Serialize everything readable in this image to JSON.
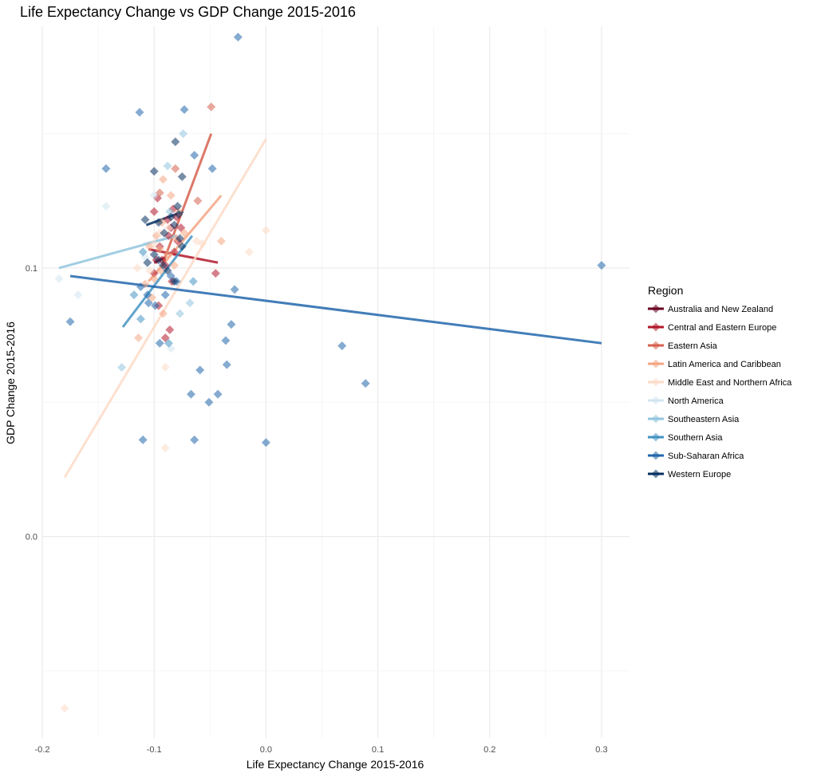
{
  "chart_data": {
    "type": "scatter",
    "title": "Life Expectancy Change vs GDP Change 2015-2016",
    "xlabel": "Life Expectancy Change 2015-2016",
    "ylabel": "GDP Change 2015-2016",
    "xlim": [
      -0.2,
      0.325
    ],
    "ylim": [
      -0.075,
      0.19
    ],
    "x_ticks": [
      -0.2,
      -0.1,
      0.0,
      0.1,
      0.2,
      0.3
    ],
    "x_tick_labels": [
      "-0.2",
      "-0.1",
      "0.0",
      "0.1",
      "0.2",
      "0.3"
    ],
    "y_ticks": [
      0.0,
      0.1
    ],
    "y_tick_labels": [
      "0.0",
      "0.1"
    ],
    "grid": true,
    "legend_title": "Region",
    "legend_position": "right",
    "series": [
      {
        "name": "Australia and New Zealand",
        "color": "#67001f",
        "points": [],
        "fit": [
          [
            -0.1,
            0.102
          ],
          [
            -0.09,
            0.104
          ]
        ]
      },
      {
        "name": "Central and Eastern Europe",
        "color": "#b2182b",
        "points": [
          [
            -0.1,
            0.121
          ],
          [
            -0.097,
            0.126
          ],
          [
            -0.095,
            0.108
          ],
          [
            -0.093,
            0.103
          ],
          [
            -0.09,
            0.101
          ],
          [
            -0.088,
            0.118
          ],
          [
            -0.087,
            0.112
          ],
          [
            -0.085,
            0.115
          ],
          [
            -0.083,
            0.122
          ],
          [
            -0.082,
            0.106
          ],
          [
            -0.08,
            0.119
          ],
          [
            -0.079,
            0.11
          ],
          [
            -0.098,
            0.103
          ],
          [
            -0.096,
            0.086
          ],
          [
            -0.09,
            0.074
          ],
          [
            -0.086,
            0.077
          ],
          [
            -0.076,
            0.115
          ],
          [
            -0.045,
            0.098
          ],
          [
            -0.084,
            0.095
          ],
          [
            -0.1,
            0.098
          ]
        ],
        "fit": [
          [
            -0.105,
            0.107
          ],
          [
            -0.043,
            0.102
          ]
        ]
      },
      {
        "name": "Eastern Asia",
        "color": "#d6604d",
        "points": [
          [
            -0.049,
            0.16
          ],
          [
            -0.061,
            0.125
          ],
          [
            -0.081,
            0.137
          ],
          [
            -0.095,
            0.128
          ]
        ],
        "fit": [
          [
            -0.092,
            0.102
          ],
          [
            -0.049,
            0.15
          ]
        ]
      },
      {
        "name": "Latin America and Caribbean",
        "color": "#f4a582",
        "points": [
          [
            -0.092,
            0.133
          ],
          [
            -0.085,
            0.127
          ],
          [
            -0.078,
            0.121
          ],
          [
            -0.073,
            0.113
          ],
          [
            -0.098,
            0.112
          ],
          [
            -0.104,
            0.108
          ],
          [
            -0.093,
            0.117
          ],
          [
            -0.088,
            0.105
          ],
          [
            -0.082,
            0.101
          ],
          [
            -0.094,
            0.099
          ],
          [
            -0.1,
            0.096
          ],
          [
            -0.108,
            0.094
          ],
          [
            -0.114,
            0.074
          ],
          [
            -0.092,
            0.083
          ],
          [
            -0.04,
            0.11
          ],
          [
            -0.102,
            0.089
          ],
          [
            -0.095,
            0.107
          ],
          [
            -0.08,
            0.111
          ]
        ],
        "fit": [
          [
            -0.105,
            0.095
          ],
          [
            -0.04,
            0.127
          ]
        ]
      },
      {
        "name": "Middle East and Northern Africa",
        "color": "#fddbc7",
        "points": [
          [
            0.0,
            0.114
          ],
          [
            -0.015,
            0.106
          ],
          [
            -0.057,
            0.109
          ],
          [
            -0.062,
            0.11
          ],
          [
            -0.09,
            0.063
          ],
          [
            -0.09,
            0.033
          ],
          [
            -0.18,
            -0.064
          ],
          [
            -0.104,
            0.099
          ],
          [
            -0.1,
            0.109
          ],
          [
            -0.095,
            0.113
          ],
          [
            -0.115,
            0.1
          ],
          [
            -0.087,
            0.115
          ]
        ],
        "fit": [
          [
            -0.18,
            0.022
          ],
          [
            0.0,
            0.148
          ]
        ]
      },
      {
        "name": "North America",
        "color": "#d1e5f0",
        "points": [
          [
            -0.185,
            0.096
          ],
          [
            -0.168,
            0.09
          ],
          [
            -0.143,
            0.123
          ],
          [
            -0.085,
            0.07
          ],
          [
            -0.1,
            0.127
          ],
          [
            -0.108,
            0.104
          ]
        ],
        "fit": [
          [
            -0.11,
            0.109
          ],
          [
            -0.08,
            0.112
          ]
        ]
      },
      {
        "name": "Southeastern Asia",
        "color": "#92c5de",
        "points": [
          [
            -0.074,
            0.15
          ],
          [
            -0.088,
            0.138
          ],
          [
            -0.077,
            0.083
          ],
          [
            -0.068,
            0.087
          ],
          [
            -0.129,
            0.063
          ],
          [
            -0.086,
            0.121
          ]
        ],
        "fit": [
          [
            -0.185,
            0.1
          ],
          [
            -0.08,
            0.112
          ]
        ]
      },
      {
        "name": "Southern Asia",
        "color": "#4393c3",
        "points": [
          [
            -0.11,
            0.106
          ],
          [
            -0.112,
            0.081
          ],
          [
            -0.118,
            0.09
          ],
          [
            -0.065,
            0.095
          ],
          [
            -0.087,
            0.072
          ]
        ],
        "fit": [
          [
            -0.128,
            0.078
          ],
          [
            -0.066,
            0.112
          ]
        ]
      },
      {
        "name": "Sub-Saharan Africa",
        "color": "#2166ac",
        "points": [
          [
            -0.025,
            0.186
          ],
          [
            -0.113,
            0.158
          ],
          [
            -0.073,
            0.159
          ],
          [
            -0.143,
            0.137
          ],
          [
            -0.048,
            0.137
          ],
          [
            -0.064,
            0.142
          ],
          [
            -0.175,
            0.08
          ],
          [
            0.3,
            0.101
          ],
          [
            0.068,
            0.071
          ],
          [
            0.089,
            0.057
          ],
          [
            0.0,
            0.035
          ],
          [
            -0.064,
            0.036
          ],
          [
            -0.11,
            0.036
          ],
          [
            -0.059,
            0.062
          ],
          [
            -0.067,
            0.053
          ],
          [
            -0.051,
            0.05
          ],
          [
            -0.043,
            0.053
          ],
          [
            -0.036,
            0.073
          ],
          [
            -0.031,
            0.079
          ],
          [
            -0.035,
            0.064
          ],
          [
            -0.028,
            0.092
          ],
          [
            -0.099,
            0.086
          ],
          [
            -0.105,
            0.087
          ],
          [
            -0.08,
            0.095
          ],
          [
            -0.095,
            0.072
          ],
          [
            -0.085,
            0.097
          ],
          [
            -0.112,
            0.093
          ],
          [
            -0.106,
            0.09
          ],
          [
            -0.09,
            0.09
          ]
        ],
        "fit": [
          [
            -0.175,
            0.097
          ],
          [
            0.3,
            0.072
          ]
        ]
      },
      {
        "name": "Western Europe",
        "color": "#053061",
        "points": [
          [
            -0.1,
            0.136
          ],
          [
            -0.081,
            0.147
          ],
          [
            -0.075,
            0.134
          ],
          [
            -0.079,
            0.123
          ],
          [
            -0.108,
            0.118
          ],
          [
            -0.096,
            0.117
          ],
          [
            -0.091,
            0.113
          ],
          [
            -0.085,
            0.119
          ],
          [
            -0.082,
            0.116
          ],
          [
            -0.078,
            0.12
          ],
          [
            -0.075,
            0.108
          ],
          [
            -0.1,
            0.105
          ],
          [
            -0.096,
            0.103
          ],
          [
            -0.092,
            0.101
          ],
          [
            -0.088,
            0.099
          ],
          [
            -0.106,
            0.102
          ],
          [
            -0.082,
            0.095
          ],
          [
            -0.077,
            0.111
          ]
        ],
        "fit": [
          [
            -0.107,
            0.116
          ],
          [
            -0.074,
            0.121
          ]
        ]
      }
    ]
  }
}
